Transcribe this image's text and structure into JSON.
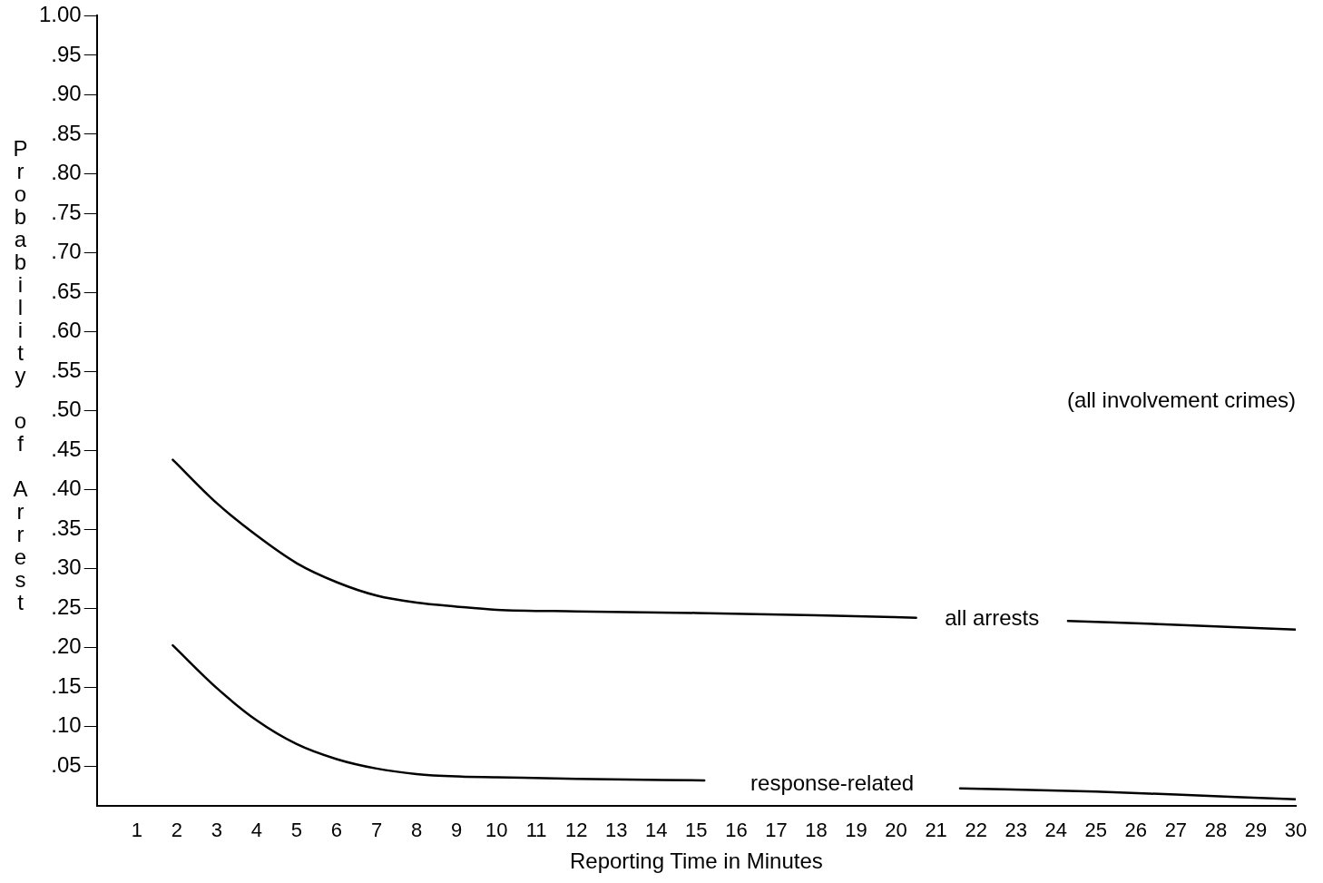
{
  "chart_data": {
    "type": "line",
    "xlabel": "Reporting Time in Minutes",
    "ylabel": "Probability of Arrest",
    "annotations": [
      "(all involvement crimes)"
    ],
    "xlim": [
      0,
      30
    ],
    "xticks": [
      1,
      2,
      3,
      4,
      5,
      6,
      7,
      8,
      9,
      10,
      11,
      12,
      13,
      14,
      15,
      16,
      17,
      18,
      19,
      20,
      21,
      22,
      23,
      24,
      25,
      26,
      27,
      28,
      29,
      30
    ],
    "ylim": [
      0,
      1
    ],
    "yticks": [
      {
        "value": 0.05,
        "label": ".05"
      },
      {
        "value": 0.1,
        "label": ".10"
      },
      {
        "value": 0.15,
        "label": ".15"
      },
      {
        "value": 0.2,
        "label": ".20"
      },
      {
        "value": 0.25,
        "label": ".25"
      },
      {
        "value": 0.3,
        "label": ".30"
      },
      {
        "value": 0.35,
        "label": ".35"
      },
      {
        "value": 0.4,
        "label": ".40"
      },
      {
        "value": 0.45,
        "label": ".45"
      },
      {
        "value": 0.5,
        "label": ".50"
      },
      {
        "value": 0.55,
        "label": ".55"
      },
      {
        "value": 0.6,
        "label": ".60"
      },
      {
        "value": 0.65,
        "label": ".65"
      },
      {
        "value": 0.7,
        "label": ".70"
      },
      {
        "value": 0.75,
        "label": ".75"
      },
      {
        "value": 0.8,
        "label": ".80"
      },
      {
        "value": 0.85,
        "label": ".85"
      },
      {
        "value": 0.9,
        "label": ".90"
      },
      {
        "value": 0.95,
        "label": ".95"
      },
      {
        "value": 1,
        "label": "1.00"
      }
    ],
    "grid": false,
    "legend": false,
    "marker": "none",
    "line_style": "solid",
    "series": [
      {
        "name": "all arrests",
        "color": "#000000",
        "x": [
          1.9,
          3,
          4,
          5,
          6,
          7,
          8,
          9,
          10,
          12,
          15,
          18,
          20.5,
          22.4,
          24.3,
          27,
          30
        ],
        "values": [
          0.438,
          0.383,
          0.342,
          0.307,
          0.283,
          0.266,
          0.257,
          0.252,
          0.248,
          0.246,
          0.244,
          0.241,
          0.238,
          null,
          0.234,
          0.229,
          0.223
        ]
      },
      {
        "name": "response-related",
        "color": "#000000",
        "x": [
          1.9,
          3,
          4,
          5,
          6,
          7,
          8,
          9,
          10,
          12,
          15.2,
          18.4,
          21.6,
          25,
          27,
          30
        ],
        "values": [
          0.203,
          0.149,
          0.108,
          0.078,
          0.059,
          0.047,
          0.04,
          0.037,
          0.036,
          0.034,
          0.032,
          null,
          0.022,
          0.018,
          0.014,
          0.008
        ]
      }
    ]
  }
}
